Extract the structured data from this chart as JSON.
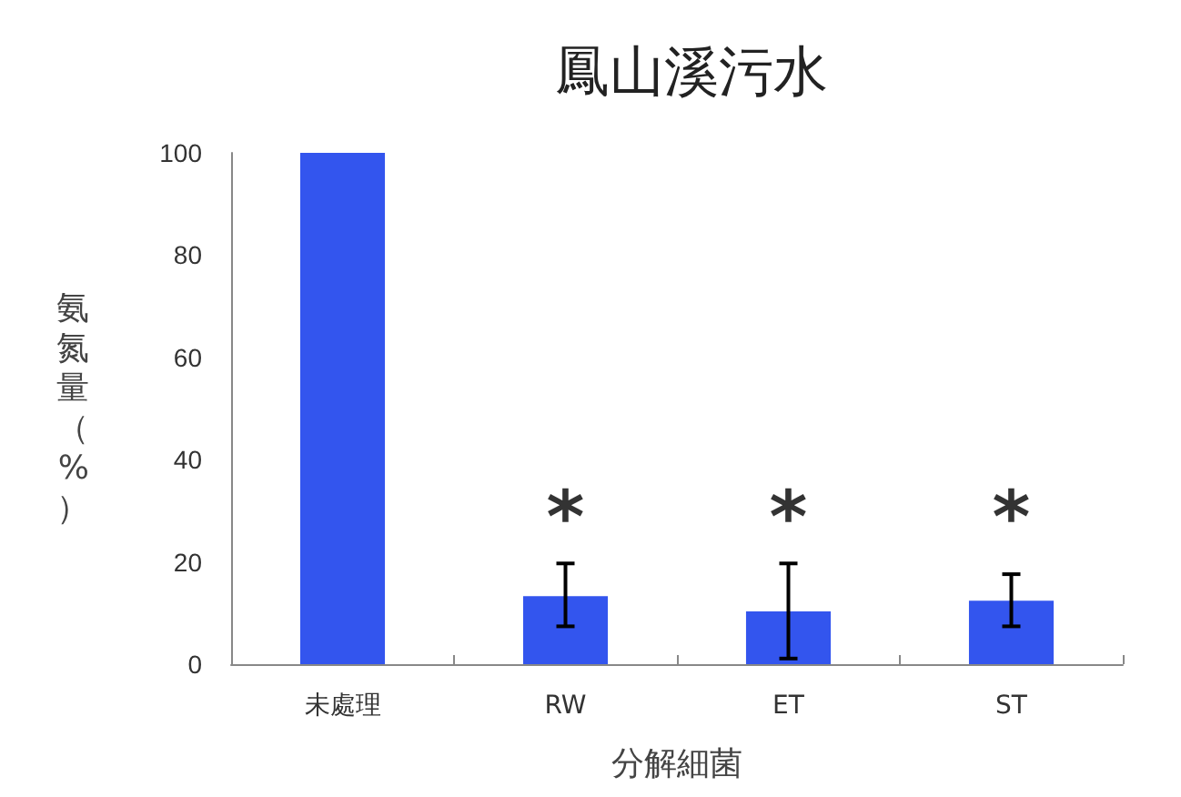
{
  "chart_data": {
    "type": "bar",
    "title": "鳳山溪污水",
    "xlabel": "分解細菌",
    "ylabel": "氨氮量（%）",
    "categories": [
      "未處理",
      "RW",
      "ET",
      "ST"
    ],
    "values": [
      100,
      13.3,
      10.3,
      12.4
    ],
    "color": "#3355ee",
    "errors": [
      null,
      [
        7.4,
        19.7
      ],
      [
        1.1,
        19.7
      ],
      [
        7.4,
        17.6
      ]
    ],
    "ylim": [
      0,
      100
    ],
    "yticks": [
      0,
      20,
      40,
      60,
      80,
      100
    ],
    "grid": false,
    "annotations": [
      "*",
      "*",
      "*"
    ]
  }
}
